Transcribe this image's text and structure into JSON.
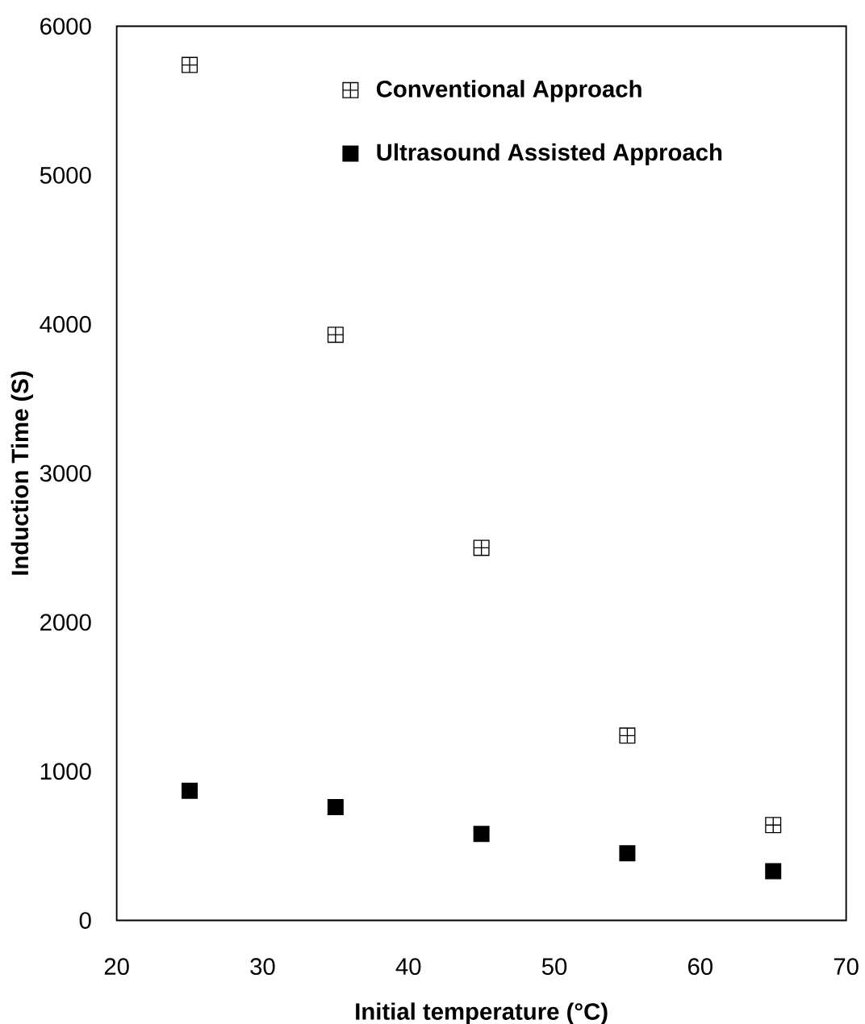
{
  "chart_data": {
    "type": "scatter",
    "xlabel": "Initial temperature (°C)",
    "ylabel": "Induction Time (S)",
    "x": [
      25,
      35,
      45,
      55,
      65
    ],
    "series": [
      {
        "name": "Conventional Approach",
        "color": "#000000",
        "marker": "cross",
        "values": [
          5740,
          3930,
          2500,
          1240,
          640
        ]
      },
      {
        "name": "Ultrasound Assisted Approach",
        "color": "#000000",
        "marker": "square",
        "values": [
          870,
          760,
          580,
          450,
          330
        ]
      }
    ],
    "xlim": [
      20,
      70
    ],
    "xticks": [
      20,
      30,
      40,
      50,
      60,
      70
    ],
    "ylim": [
      0,
      6000
    ],
    "yticks": [
      0,
      1000,
      2000,
      3000,
      4000,
      5000,
      6000
    ],
    "grid": false,
    "legend": "top right"
  }
}
